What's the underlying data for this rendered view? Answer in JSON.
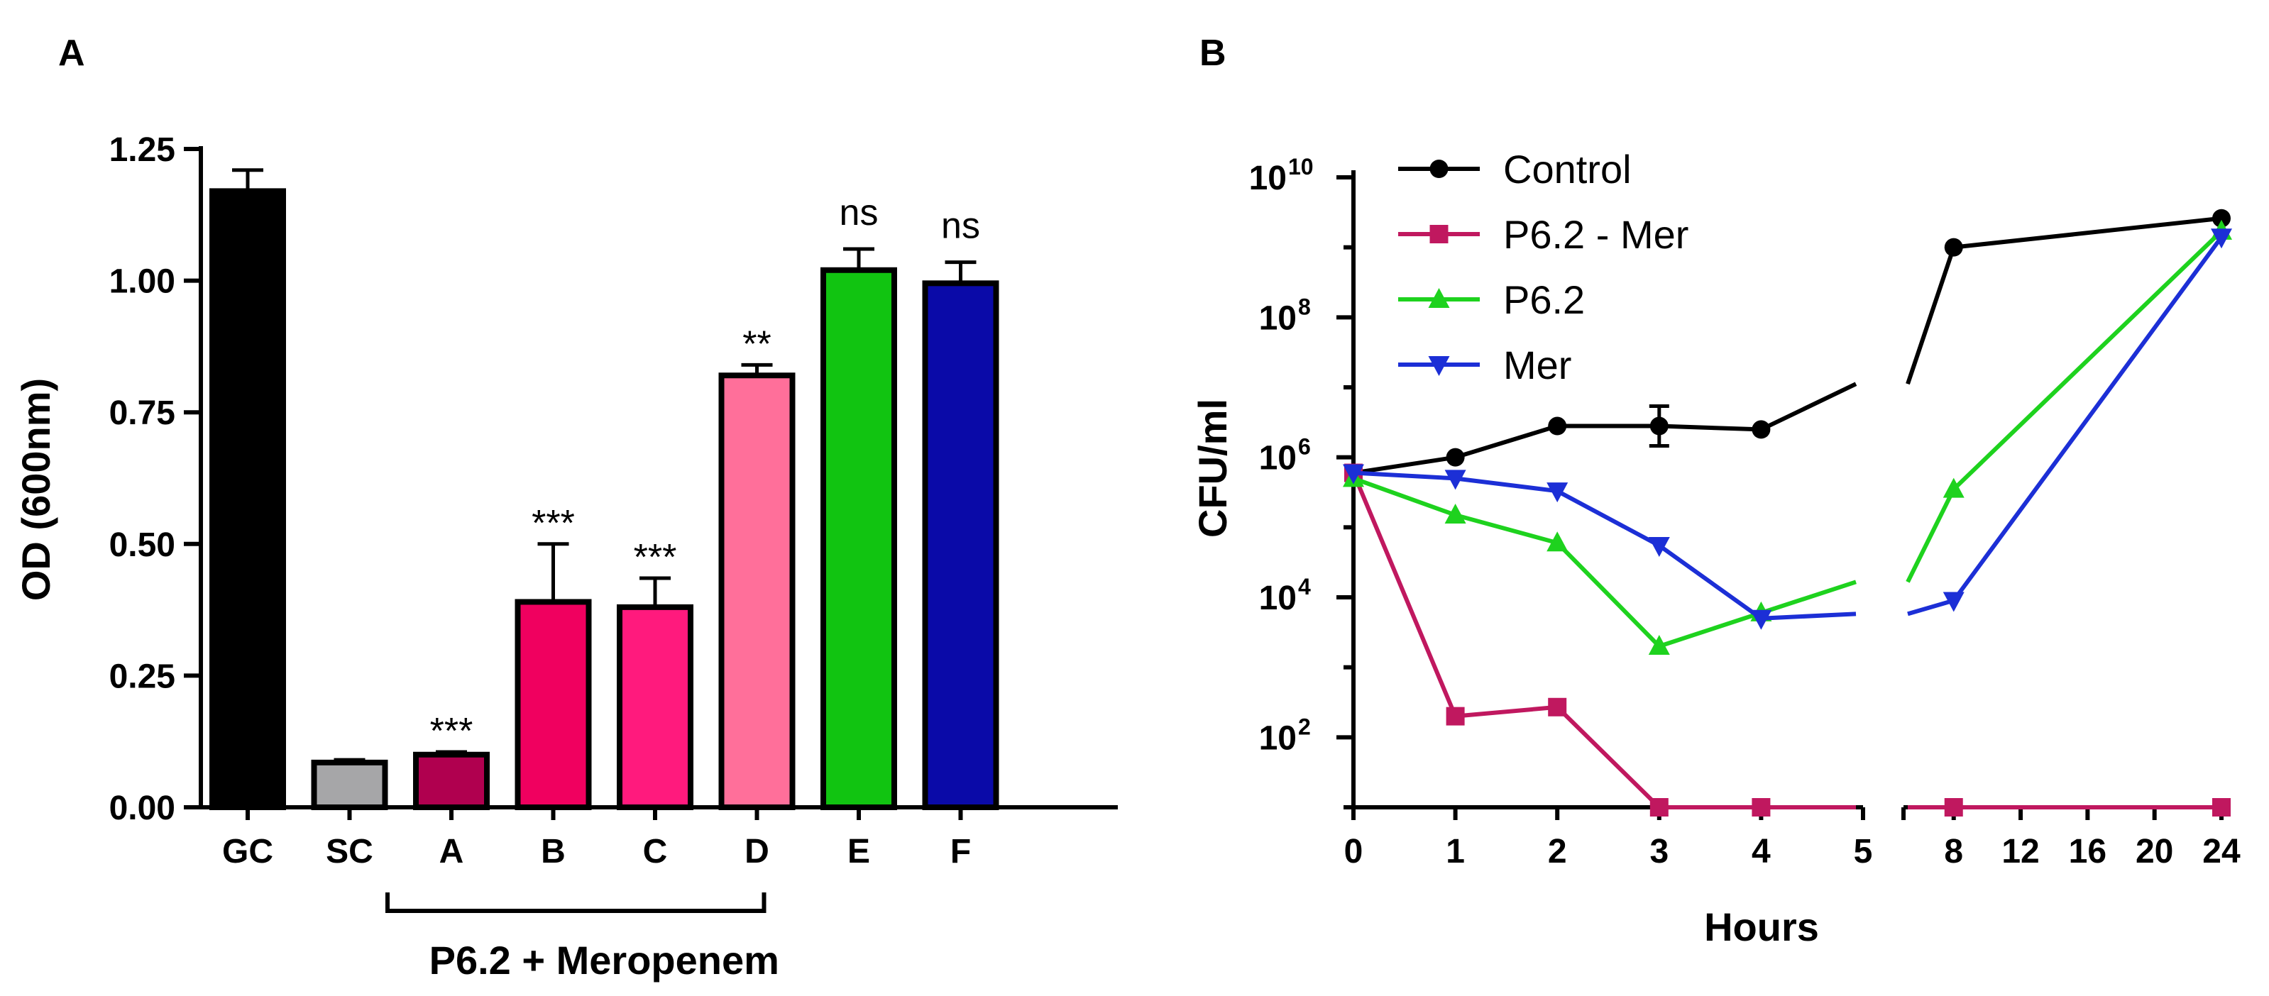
{
  "panels": {
    "a_letter": "A",
    "b_letter": "B"
  },
  "chart_data": [
    {
      "type": "bar",
      "panel": "A",
      "categories": [
        "GC",
        "SC",
        "A",
        "B",
        "C",
        "D",
        "E",
        "F"
      ],
      "values": [
        1.17,
        0.085,
        0.1,
        0.39,
        0.38,
        0.82,
        1.02,
        0.995
      ],
      "errors": [
        0.04,
        0.005,
        0.005,
        0.11,
        0.055,
        0.02,
        0.04,
        0.04
      ],
      "colors": [
        "#000000",
        "#a6a6a8",
        "#b0004f",
        "#f0005f",
        "#ff1a7d",
        "#ff6f9a",
        "#11c411",
        "#0a0aa8"
      ],
      "annotations": [
        "",
        "",
        "***",
        "***",
        "***",
        "**",
        "ns",
        "ns"
      ],
      "ylabel": "OD (600nm)",
      "ylim": [
        0,
        1.25
      ],
      "yticks": [
        "0.00",
        "0.25",
        "0.50",
        "0.75",
        "1.00",
        "1.25"
      ],
      "bracket_label": "P6.2 + Meropenem",
      "bracket_span": [
        "A",
        "D"
      ]
    },
    {
      "type": "line",
      "panel": "B",
      "x": [
        0,
        1,
        2,
        3,
        4,
        8,
        24
      ],
      "xticks": [
        "0",
        "1",
        "2",
        "3",
        "4",
        "5",
        "8",
        "12",
        "16",
        "20",
        "24"
      ],
      "xlabel": "Hours",
      "ylabel": "CFU/ml",
      "yscale": "log",
      "ylim": [
        10,
        10000000000
      ],
      "ytick_base": "10",
      "ytick_exponents": [
        "2",
        "4",
        "6",
        "8",
        "10"
      ],
      "legend_position": "top-left",
      "series": [
        {
          "name": "Control",
          "color": "#000000",
          "marker": "circle",
          "values": [
            600000,
            1000000,
            2800000,
            2800000,
            2500000,
            1000000000,
            2600000000
          ]
        },
        {
          "name": "P6.2 - Mer",
          "color": "#c0185f",
          "marker": "square",
          "values": [
            600000,
            200,
            270,
            10,
            10,
            10,
            10
          ]
        },
        {
          "name": "P6.2",
          "color": "#1ed21e",
          "marker": "triangle-up",
          "values": [
            500000,
            150000,
            60000,
            2000,
            6000,
            350000,
            1700000000
          ]
        },
        {
          "name": "Mer",
          "color": "#1c2fd6",
          "marker": "triangle-down",
          "values": [
            600000,
            500000,
            330000,
            55000,
            5000,
            9000,
            1400000000
          ]
        }
      ]
    }
  ]
}
